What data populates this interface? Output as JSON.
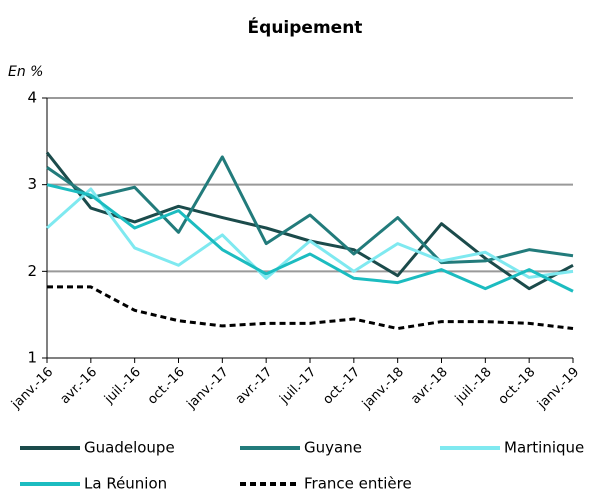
{
  "chart_data": {
    "type": "line",
    "title": "Équipement",
    "y_label": "En %",
    "categories": [
      "janv.-16",
      "avr.-16",
      "juil.-16",
      "oct.-16",
      "janv.-17",
      "avr.-17",
      "juil.-17",
      "oct.-17",
      "janv.-18",
      "avr.-18",
      "juil.-18",
      "oct.-18",
      "janv.-19"
    ],
    "series": [
      {
        "name": "Guadeloupe",
        "color": "#1b4b4b",
        "linestyle": "solid",
        "values": [
          3.37,
          2.73,
          2.57,
          2.75,
          2.62,
          2.5,
          2.35,
          2.25,
          1.95,
          2.55,
          2.15,
          1.8,
          2.07
        ]
      },
      {
        "name": "Guyane",
        "color": "#227b7b",
        "linestyle": "solid",
        "values": [
          3.2,
          2.85,
          2.97,
          2.45,
          3.32,
          2.32,
          2.65,
          2.2,
          2.62,
          2.1,
          2.12,
          2.25,
          2.18
        ]
      },
      {
        "name": "Martinique",
        "color": "#7fe9f0",
        "linestyle": "solid",
        "values": [
          2.5,
          2.95,
          2.27,
          2.07,
          2.42,
          1.92,
          2.35,
          2.0,
          2.32,
          2.12,
          2.22,
          1.93,
          2.0
        ]
      },
      {
        "name": "La Réunion",
        "color": "#1cbcc0",
        "linestyle": "solid",
        "values": [
          3.0,
          2.88,
          2.5,
          2.7,
          2.25,
          1.97,
          2.2,
          1.92,
          1.87,
          2.02,
          1.8,
          2.02,
          1.77
        ]
      },
      {
        "name": "France entière",
        "color": "#000000",
        "linestyle": "dashed",
        "values": [
          1.82,
          1.82,
          1.55,
          1.43,
          1.37,
          1.4,
          1.4,
          1.45,
          1.34,
          1.42,
          1.42,
          1.4,
          1.34
        ]
      }
    ],
    "ylim": [
      1,
      4
    ],
    "yticks": [
      1,
      2,
      3,
      4
    ],
    "grid": true
  }
}
